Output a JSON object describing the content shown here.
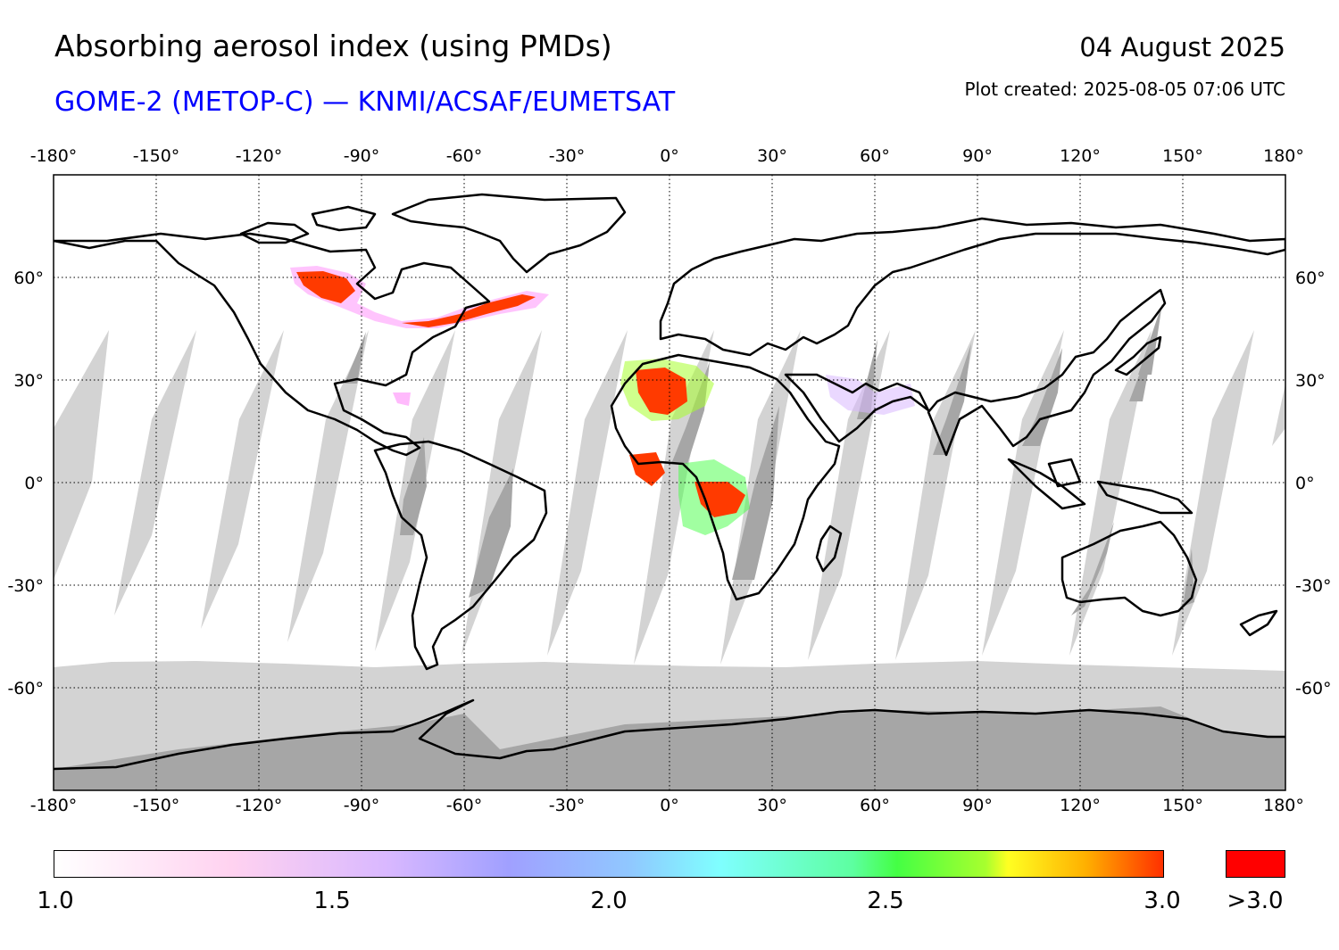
{
  "header": {
    "title": "Absorbing aerosol index (using PMDs)",
    "subtitle": "GOME-2 (METOP-C) — KNMI/ACSAF/EUMETSAT",
    "date": "04 August 2025",
    "created": "Plot created: 2025-08-05 07:06 UTC"
  },
  "map": {
    "lon_ticks": [
      "-180°",
      "-150°",
      "-120°",
      "-90°",
      "-60°",
      "-30°",
      "0°",
      "30°",
      "60°",
      "90°",
      "120°",
      "150°",
      "180°"
    ],
    "lat_ticks": [
      "60°",
      "30°",
      "0°",
      "-30°",
      "-60°"
    ],
    "colors": {
      "no_data": "#d3d3d3",
      "no_data_land": "#a6a6a6",
      "coast": "#000000",
      "high_aerosol": "#ff3a00"
    }
  },
  "colorbar": {
    "labels": [
      "1.0",
      "1.5",
      "2.0",
      "2.5",
      "3.0"
    ],
    "over_label": ">3.0",
    "over_color": "#ff0000"
  }
}
